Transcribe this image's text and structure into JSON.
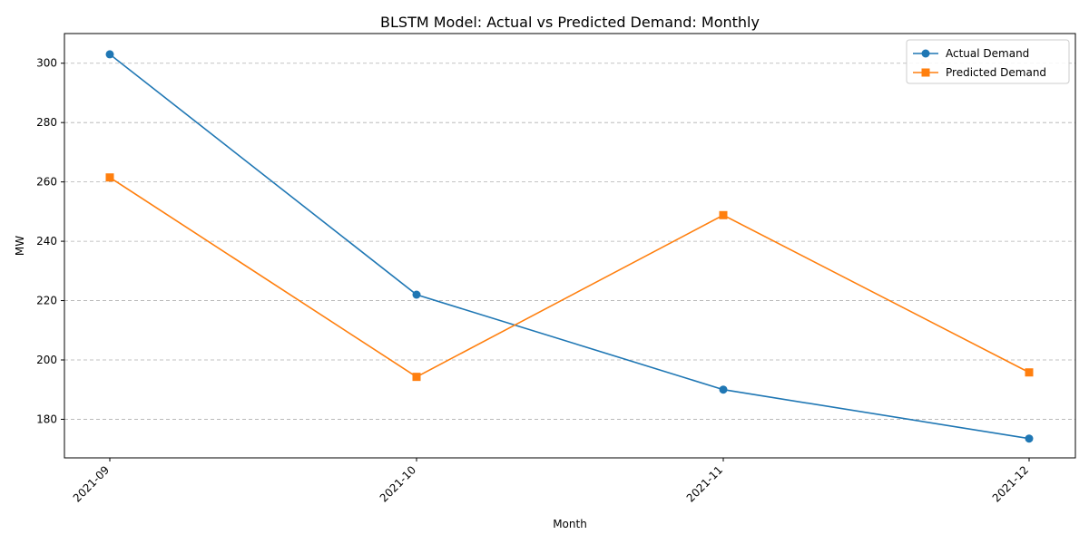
{
  "chart_data": {
    "type": "line",
    "title": "BLSTM Model: Actual vs Predicted Demand: Monthly",
    "xlabel": "Month",
    "ylabel": "MW",
    "categories": [
      "2021-09",
      "2021-10",
      "2021-11",
      "2021-12"
    ],
    "series": [
      {
        "name": "Actual Demand",
        "values": [
          303.0,
          222.0,
          190.0,
          173.5
        ],
        "color": "#1f77b4",
        "marker": "circle"
      },
      {
        "name": "Predicted Demand",
        "values": [
          261.5,
          194.3,
          248.8,
          195.8
        ],
        "color": "#ff7f0e",
        "marker": "square"
      }
    ],
    "ylim": [
      167,
      310
    ],
    "yticks": [
      180,
      200,
      220,
      240,
      260,
      280,
      300
    ],
    "grid": "y-dashed",
    "legend_position": "top-right"
  }
}
